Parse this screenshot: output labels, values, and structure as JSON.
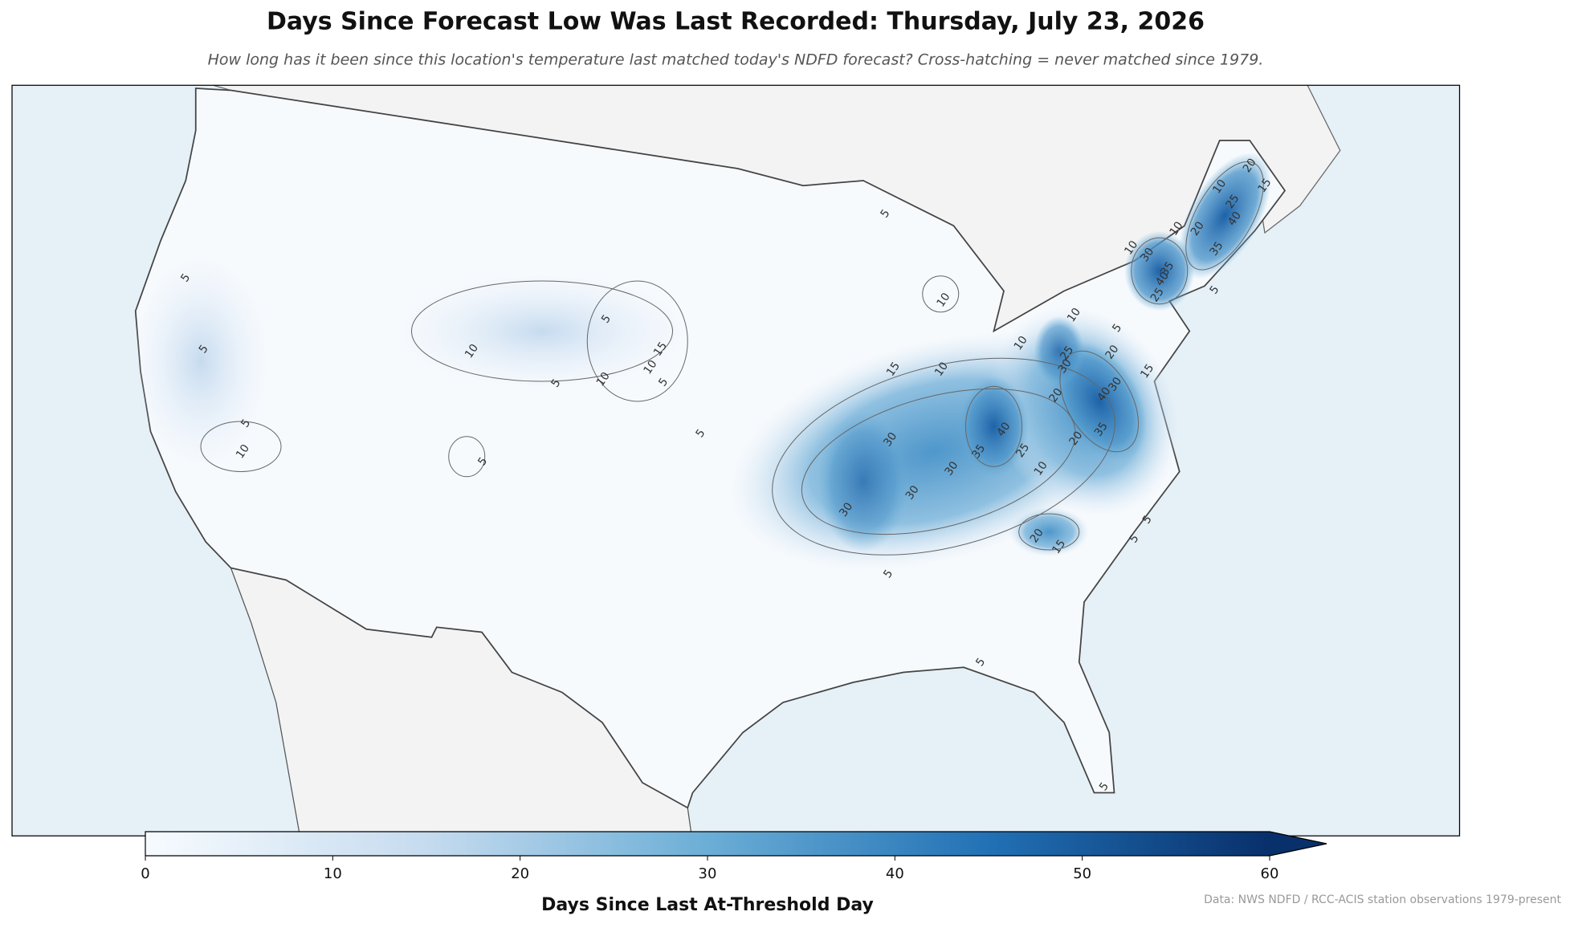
{
  "chart_data": {
    "type": "map",
    "title": "Days Since Forecast Low Was Last Recorded: Thursday, July 23, 2026",
    "subtitle": "How long has it been since this location's temperature last matched today's NDFD forecast? Cross-hatching = never matched since 1979.",
    "colorbar": {
      "label": "Days Since Last At-Threshold Day",
      "lim": [
        0,
        60
      ],
      "ticks": [
        0,
        10,
        20,
        30,
        40,
        50,
        60
      ],
      "extend": "max"
    },
    "contour_labels": [
      5,
      5,
      5,
      5,
      10,
      10,
      5,
      15,
      10,
      5,
      10,
      5,
      5,
      5,
      10,
      10,
      15,
      30,
      30,
      30,
      30,
      40,
      35,
      25,
      10,
      20,
      15,
      5,
      5,
      5,
      25,
      30,
      20,
      20,
      40,
      30,
      35,
      20,
      15,
      5,
      10,
      10,
      10,
      30,
      35,
      40,
      25,
      10,
      20,
      35,
      40,
      25,
      10,
      20,
      15,
      5,
      5,
      5
    ],
    "source": "Data: NWS NDFD / RCC-ACIS station observations 1979-present"
  }
}
